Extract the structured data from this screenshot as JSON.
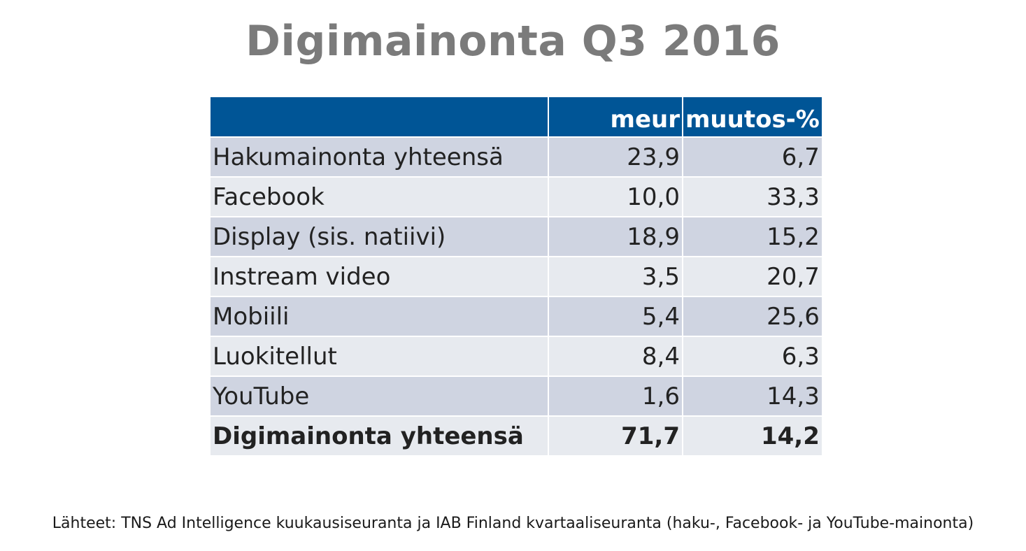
{
  "title": "Digimainonta Q3 2016",
  "chart_data": {
    "type": "table",
    "title": "Digimainonta Q3 2016",
    "columns": [
      "",
      "meur",
      "muutos-%"
    ],
    "rows": [
      {
        "label": "Hakumainonta yhteensä",
        "meur": "23,9",
        "change": "6,7"
      },
      {
        "label": "Facebook",
        "meur": "10,0",
        "change": "33,3"
      },
      {
        "label": "Display (sis. natiivi)",
        "meur": "18,9",
        "change": "15,2"
      },
      {
        "label": "Instream video",
        "meur": "3,5",
        "change": "20,7"
      },
      {
        "label": "Mobiili",
        "meur": "5,4",
        "change": "25,6"
      },
      {
        "label": "Luokitellut",
        "meur": "8,4",
        "change": "6,3"
      },
      {
        "label": "YouTube",
        "meur": "1,6",
        "change": "14,3"
      }
    ],
    "total": {
      "label": "Digimainonta yhteensä",
      "meur": "71,7",
      "change": "14,2"
    }
  },
  "source": "Lähteet: TNS Ad Intelligence kuukausiseuranta ja IAB Finland kvartaaliseuranta (haku-, Facebook- ja YouTube-mainonta)",
  "colors": {
    "header_bg": "#005596",
    "row_dark": "#cfd4e1",
    "row_light": "#e7eaef",
    "title": "#7b7b7b"
  }
}
